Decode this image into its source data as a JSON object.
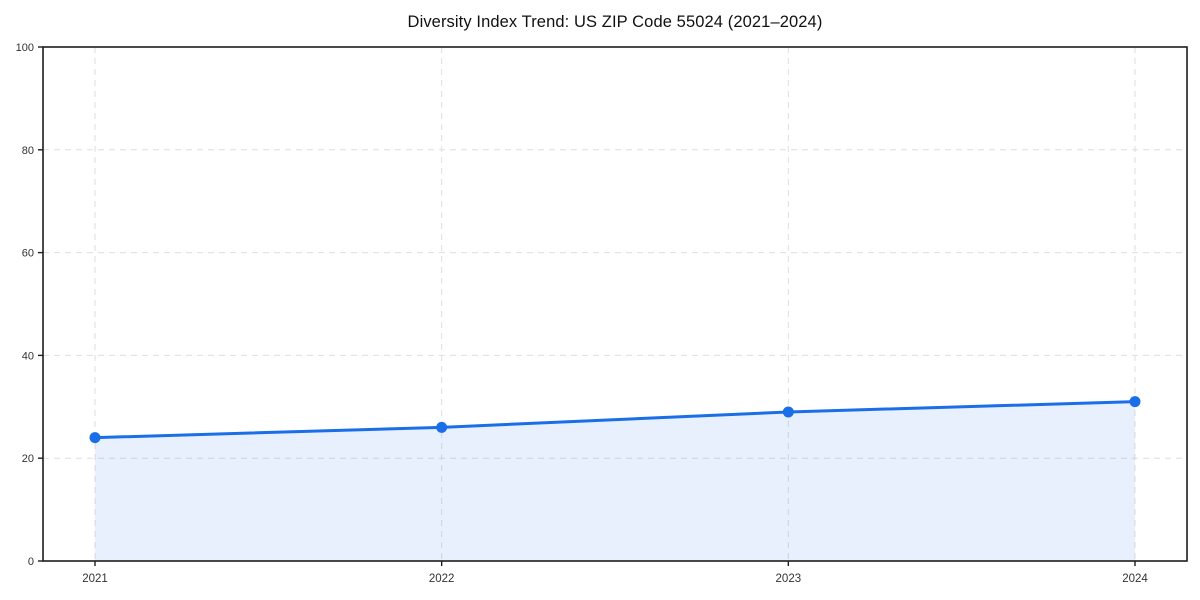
{
  "chart_data": {
    "type": "area",
    "title": "Diversity Index Trend: US ZIP Code 55024 (2021–2024)",
    "x": [
      "2021",
      "2022",
      "2023",
      "2024"
    ],
    "series": [
      {
        "name": "Diversity Index",
        "values": [
          24,
          26,
          29,
          31
        ]
      }
    ],
    "xlabel": "",
    "ylabel": "",
    "ylim": [
      0,
      100
    ],
    "yticks": [
      0,
      20,
      40,
      60,
      80,
      100
    ],
    "grid": true,
    "grid_style": "dashed",
    "legend_position": "none",
    "x_margin_frac": 0.05,
    "colors": {
      "line": "#1a6ee8",
      "fill": "rgba(26,110,232,0.10)",
      "grid": "#dedede",
      "spine": "#1d1d1d",
      "tick_label": "#333333",
      "title": "#111111",
      "background": "#ffffff"
    }
  }
}
